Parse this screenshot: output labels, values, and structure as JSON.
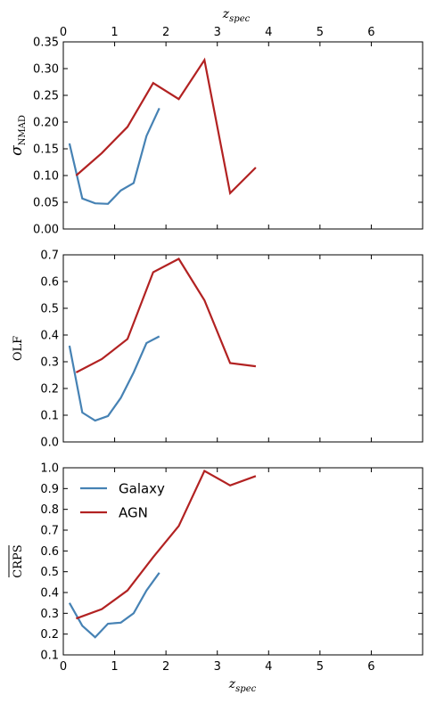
{
  "figure": {
    "top_xlabel": "z",
    "top_xlabel_sub": "spec",
    "bottom_xlabel": "z",
    "bottom_xlabel_sub": "spec"
  },
  "colors": {
    "galaxy": "#4682b4",
    "agn": "#b22222"
  },
  "chart_data": [
    {
      "type": "line",
      "ylabel": "σ",
      "ylabel_sub": "NMAD",
      "xlim": [
        0,
        7
      ],
      "ylim": [
        0,
        0.35
      ],
      "xticks": [
        "0",
        "1",
        "2",
        "3",
        "4",
        "5",
        "6"
      ],
      "yticks": [
        "0.00",
        "0.05",
        "0.10",
        "0.15",
        "0.20",
        "0.25",
        "0.30",
        "0.35"
      ],
      "series": [
        {
          "name": "Galaxy",
          "x": [
            0.12,
            0.37,
            0.62,
            0.87,
            1.12,
            1.37,
            1.62,
            1.87
          ],
          "y": [
            0.16,
            0.057,
            0.048,
            0.047,
            0.072,
            0.086,
            0.174,
            0.226
          ]
        },
        {
          "name": "AGN",
          "x": [
            0.25,
            0.75,
            1.25,
            1.75,
            2.25,
            2.75,
            3.25,
            3.75
          ],
          "y": [
            0.1,
            0.142,
            0.191,
            0.273,
            0.243,
            0.316,
            0.067,
            0.115
          ]
        }
      ]
    },
    {
      "type": "line",
      "ylabel": "OLF",
      "xlim": [
        0,
        7
      ],
      "ylim": [
        0,
        0.7
      ],
      "xticks": [
        "0",
        "1",
        "2",
        "3",
        "4",
        "5",
        "6"
      ],
      "yticks": [
        "0.0",
        "0.1",
        "0.2",
        "0.3",
        "0.4",
        "0.5",
        "0.6",
        "0.7"
      ],
      "series": [
        {
          "name": "Galaxy",
          "x": [
            0.12,
            0.37,
            0.62,
            0.87,
            1.12,
            1.37,
            1.62,
            1.87
          ],
          "y": [
            0.36,
            0.11,
            0.08,
            0.097,
            0.165,
            0.26,
            0.37,
            0.395
          ]
        },
        {
          "name": "AGN",
          "x": [
            0.25,
            0.75,
            1.25,
            1.75,
            2.25,
            2.75,
            3.25,
            3.75
          ],
          "y": [
            0.26,
            0.31,
            0.385,
            0.635,
            0.685,
            0.53,
            0.295,
            0.283
          ]
        }
      ]
    },
    {
      "type": "line",
      "ylabel": "CRPS",
      "ylabel_overline": true,
      "xlim": [
        0,
        7
      ],
      "ylim": [
        0.1,
        1.0
      ],
      "xticks": [
        "0",
        "1",
        "2",
        "3",
        "4",
        "5",
        "6"
      ],
      "yticks": [
        "0.1",
        "0.2",
        "0.3",
        "0.4",
        "0.5",
        "0.6",
        "0.7",
        "0.8",
        "0.9",
        "1.0"
      ],
      "legend": {
        "position": "upper-left",
        "entries": [
          "Galaxy",
          "AGN"
        ]
      },
      "series": [
        {
          "name": "Galaxy",
          "x": [
            0.12,
            0.37,
            0.62,
            0.87,
            1.12,
            1.37,
            1.62,
            1.87
          ],
          "y": [
            0.35,
            0.24,
            0.185,
            0.25,
            0.255,
            0.3,
            0.41,
            0.495
          ]
        },
        {
          "name": "AGN",
          "x": [
            0.25,
            0.75,
            1.25,
            1.75,
            2.25,
            2.75,
            3.25,
            3.75
          ],
          "y": [
            0.275,
            0.32,
            0.41,
            0.57,
            0.72,
            0.985,
            0.915,
            0.96
          ]
        }
      ]
    }
  ]
}
